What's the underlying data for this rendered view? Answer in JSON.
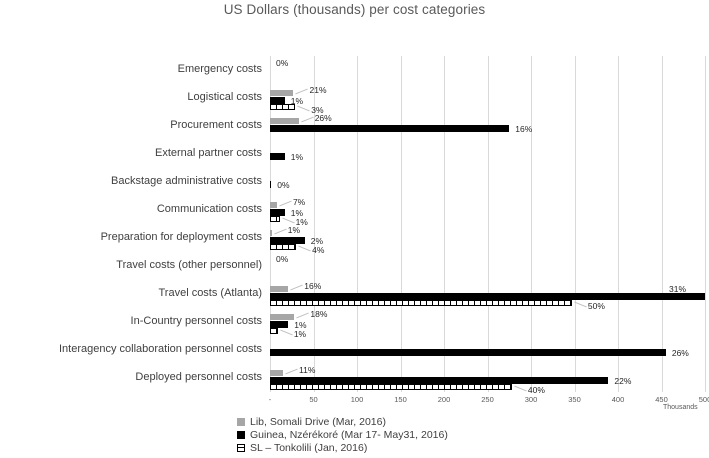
{
  "chart_data": {
    "type": "bar",
    "orientation": "horizontal",
    "title": "US Dollars (thousands) per cost categories",
    "value_unit": "US Dollars (thousands)",
    "x_axis": {
      "min": 0,
      "max": 500,
      "tick_step": 50,
      "ticks": [
        "-",
        "50",
        "100",
        "150",
        "200",
        "250",
        "300",
        "350",
        "400",
        "450",
        "500"
      ],
      "unit_label": "Thousands",
      "grid": true
    },
    "legend_position": "bottom-left",
    "series": [
      {
        "name": "Lib, Somali Drive (Mar, 2016)",
        "color": "#a6a6a6",
        "pattern": "solid"
      },
      {
        "name": "Guinea, Nzérékoré (Mar 17- May31, 2016)",
        "color": "#000000",
        "pattern": "solid"
      },
      {
        "name": "SL – Tonkolili (Jan, 2016)",
        "color": "#ffffff",
        "pattern": "hatched"
      }
    ],
    "categories": [
      {
        "label": "Emergency costs",
        "values": [
          0,
          0,
          0
        ],
        "pct_labels": [
          "0%",
          null,
          null
        ]
      },
      {
        "label": "Logistical costs",
        "values": [
          27,
          17,
          29
        ],
        "pct_labels": [
          "21%",
          "1%",
          "3%"
        ]
      },
      {
        "label": "Procurement costs",
        "values": [
          33,
          275,
          0
        ],
        "pct_labels": [
          "26%",
          "16%",
          null
        ]
      },
      {
        "label": "External partner costs",
        "values": [
          0,
          17,
          0
        ],
        "pct_labels": [
          null,
          "1%",
          null
        ]
      },
      {
        "label": "Backstage administrative costs",
        "values": [
          0,
          1.5,
          0
        ],
        "pct_labels": [
          null,
          "0%",
          null
        ]
      },
      {
        "label": "Communication costs",
        "values": [
          8,
          17,
          11
        ],
        "pct_labels": [
          "7%",
          "1%",
          "1%"
        ]
      },
      {
        "label": "Preparation for deployment costs",
        "values": [
          2,
          40,
          30
        ],
        "pct_labels": [
          "1%",
          "2%",
          "4%"
        ]
      },
      {
        "label": "Travel costs (other personnel)",
        "values": [
          0,
          0,
          0
        ],
        "pct_labels": [
          "0%",
          null,
          null
        ]
      },
      {
        "label": "Travel costs (Atlanta)",
        "values": [
          21,
          500,
          347
        ],
        "pct_labels": [
          "16%",
          "31%",
          "50%"
        ]
      },
      {
        "label": "In-Country personnel costs",
        "values": [
          28,
          21,
          9
        ],
        "pct_labels": [
          "18%",
          "1%",
          "1%"
        ]
      },
      {
        "label": "Interagency collaboration personnel costs",
        "values": [
          0,
          455,
          0
        ],
        "pct_labels": [
          null,
          "26%",
          null
        ]
      },
      {
        "label": "Deployed personnel costs",
        "values": [
          15,
          389,
          278
        ],
        "pct_labels": [
          "11%",
          "22%",
          "40%"
        ]
      }
    ],
    "colors": {
      "grid": "#d9d9d9",
      "title_text": "#595959",
      "axis_text": "#595959",
      "category_text": "#3f3f3f",
      "data_label_text": "#262626"
    }
  }
}
